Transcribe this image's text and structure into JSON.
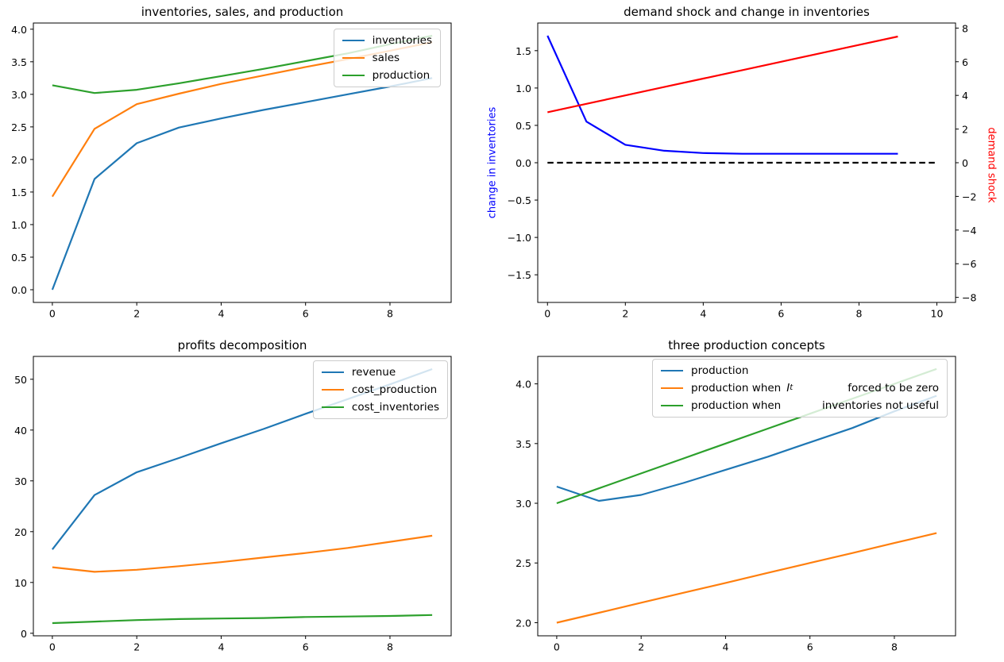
{
  "figure": {
    "background": "#ffffff",
    "description": "matplotlib 2x2 subplot figure: inventory-sales smoothing model results"
  },
  "colors": {
    "mpl_blue": "#1f77b4",
    "mpl_orange": "#ff7f0e",
    "mpl_green": "#2ca02c",
    "pure_blue": "#0000ff",
    "pure_red": "#ff0000",
    "black": "#000000"
  },
  "chart_data": [
    {
      "type": "line",
      "panel": "top-left",
      "title": "inventories, sales, and production",
      "x": [
        0,
        1,
        2,
        3,
        4,
        5,
        6,
        7,
        8,
        9
      ],
      "xlim": [
        -0.45,
        9.45
      ],
      "ylim": [
        -0.195,
        4.095
      ],
      "xtick_values": [
        0,
        2,
        4,
        6,
        8
      ],
      "xtick_labels": [
        "0",
        "2",
        "4",
        "6",
        "8"
      ],
      "ytick_values": [
        0,
        0.5,
        1,
        1.5,
        2,
        2.5,
        3,
        3.5,
        4
      ],
      "ytick_labels": [
        "0.0",
        "0.5",
        "1.0",
        "1.5",
        "2.0",
        "2.5",
        "3.0",
        "3.5",
        "4.0"
      ],
      "grid": false,
      "legend_position": "upper right",
      "series": [
        {
          "name": "inventories",
          "color": "#1f77b4",
          "legend": {
            "left": "inventories"
          },
          "values": [
            0.0,
            1.7,
            2.25,
            2.49,
            2.63,
            2.76,
            2.88,
            3.0,
            3.12,
            3.25
          ]
        },
        {
          "name": "sales",
          "color": "#ff7f0e",
          "legend": {
            "left": "sales"
          },
          "values": [
            1.43,
            2.47,
            2.85,
            3.01,
            3.16,
            3.29,
            3.42,
            3.54,
            3.67,
            3.8
          ]
        },
        {
          "name": "production",
          "color": "#2ca02c",
          "legend": {
            "left": "production"
          },
          "values": [
            3.14,
            3.02,
            3.07,
            3.17,
            3.28,
            3.39,
            3.51,
            3.63,
            3.77,
            3.9
          ]
        }
      ]
    },
    {
      "type": "line",
      "panel": "top-right",
      "title": "demand shock and change in inventories",
      "x": [
        0,
        1,
        2,
        3,
        4,
        5,
        6,
        7,
        8,
        9
      ],
      "xlim": [
        -0.25,
        10.48
      ],
      "ylim": [
        -1.87,
        1.87
      ],
      "ylim_right": [
        -8.3,
        8.3
      ],
      "xtick_values": [
        0,
        2,
        4,
        6,
        8,
        10
      ],
      "xtick_labels": [
        "0",
        "2",
        "4",
        "6",
        "8",
        "10"
      ],
      "ytick_values": [
        1.5,
        1.0,
        0.5,
        0.0,
        -0.5,
        -1.0,
        -1.5
      ],
      "ytick_labels": [
        "1.5",
        "1.0",
        "0.5",
        "0.0",
        "−0.5",
        "−1.0",
        "−1.5"
      ],
      "ytick_right_values": [
        8,
        6,
        4,
        2,
        0,
        -2,
        -4,
        -6,
        -8
      ],
      "ytick_right_labels": [
        "8",
        "6",
        "4",
        "2",
        "0",
        "−2",
        "−4",
        "−6",
        "−8"
      ],
      "ylabel_left": {
        "text": "change in inventories",
        "color": "#0000ff"
      },
      "ylabel_right": {
        "text": "demand shock",
        "color": "#ff0000"
      },
      "grid": false,
      "legend_position": "none",
      "series": [
        {
          "name": "change in inventories",
          "color": "#0000ff",
          "values": [
            1.7,
            0.55,
            0.24,
            0.16,
            0.13,
            0.12,
            0.12,
            0.12,
            0.12,
            0.12
          ]
        },
        {
          "name": "demand shock",
          "color": "#ff0000",
          "axis": "right",
          "values": [
            3.0,
            3.5,
            4.0,
            4.5,
            5.0,
            5.5,
            6.0,
            6.5,
            7.0,
            7.5
          ]
        },
        {
          "name": "zero line",
          "color": "#000000",
          "dash": true,
          "x": [
            0,
            10
          ],
          "values": [
            0,
            0
          ]
        }
      ]
    },
    {
      "type": "line",
      "panel": "bottom-left",
      "title": "profits decomposition",
      "x": [
        0,
        1,
        2,
        3,
        4,
        5,
        6,
        7,
        8,
        9
      ],
      "xlim": [
        -0.45,
        9.45
      ],
      "ylim": [
        -0.5,
        54.5
      ],
      "xtick_values": [
        0,
        2,
        4,
        6,
        8
      ],
      "xtick_labels": [
        "0",
        "2",
        "4",
        "6",
        "8"
      ],
      "ytick_values": [
        0,
        10,
        20,
        30,
        40,
        50
      ],
      "ytick_labels": [
        "0",
        "10",
        "20",
        "30",
        "40",
        "50"
      ],
      "grid": false,
      "legend_position": "upper right",
      "series": [
        {
          "name": "revenue",
          "color": "#1f77b4",
          "legend": {
            "left": "revenue"
          },
          "values": [
            16.5,
            27.2,
            31.7,
            34.5,
            37.4,
            40.2,
            43.2,
            46.1,
            49.0,
            52.0
          ]
        },
        {
          "name": "cost_production",
          "color": "#ff7f0e",
          "legend": {
            "left": "cost_production"
          },
          "values": [
            13.0,
            12.1,
            12.5,
            13.2,
            14.0,
            14.9,
            15.8,
            16.8,
            18.0,
            19.2
          ]
        },
        {
          "name": "cost_inventories",
          "color": "#2ca02c",
          "legend": {
            "left": "cost_inventories"
          },
          "values": [
            2.0,
            2.3,
            2.6,
            2.8,
            2.9,
            3.0,
            3.2,
            3.3,
            3.4,
            3.6
          ]
        }
      ]
    },
    {
      "type": "line",
      "panel": "bottom-right",
      "title": "three production concepts",
      "x": [
        0,
        1,
        2,
        3,
        4,
        5,
        6,
        7,
        8,
        9
      ],
      "xlim": [
        -0.45,
        9.45
      ],
      "ylim": [
        1.89,
        4.23
      ],
      "xtick_values": [
        0,
        2,
        4,
        6,
        8
      ],
      "xtick_labels": [
        "0",
        "2",
        "4",
        "6",
        "8"
      ],
      "ytick_values": [
        2.0,
        2.5,
        3.0,
        3.5,
        4.0
      ],
      "ytick_labels": [
        "2.0",
        "2.5",
        "3.0",
        "3.5",
        "4.0"
      ],
      "grid": false,
      "legend_position": "upper right wide",
      "series": [
        {
          "name": "production",
          "color": "#1f77b4",
          "legend": {
            "left": "production"
          },
          "values": [
            3.14,
            3.02,
            3.07,
            3.17,
            3.28,
            3.39,
            3.51,
            3.63,
            3.77,
            3.9
          ]
        },
        {
          "name": "production when I_t forced to be zero",
          "color": "#ff7f0e",
          "legend": {
            "left": "production when",
            "math": "I",
            "sub": "t",
            "right": "forced to be zero"
          },
          "values": [
            2.0,
            2.083,
            2.167,
            2.25,
            2.333,
            2.417,
            2.5,
            2.583,
            2.667,
            2.75
          ]
        },
        {
          "name": "production when inventories not useful",
          "color": "#2ca02c",
          "legend": {
            "left": "production when",
            "right": "inventories not useful"
          },
          "values": [
            3.0,
            3.125,
            3.25,
            3.375,
            3.5,
            3.625,
            3.75,
            3.875,
            4.0,
            4.125
          ]
        }
      ]
    }
  ]
}
